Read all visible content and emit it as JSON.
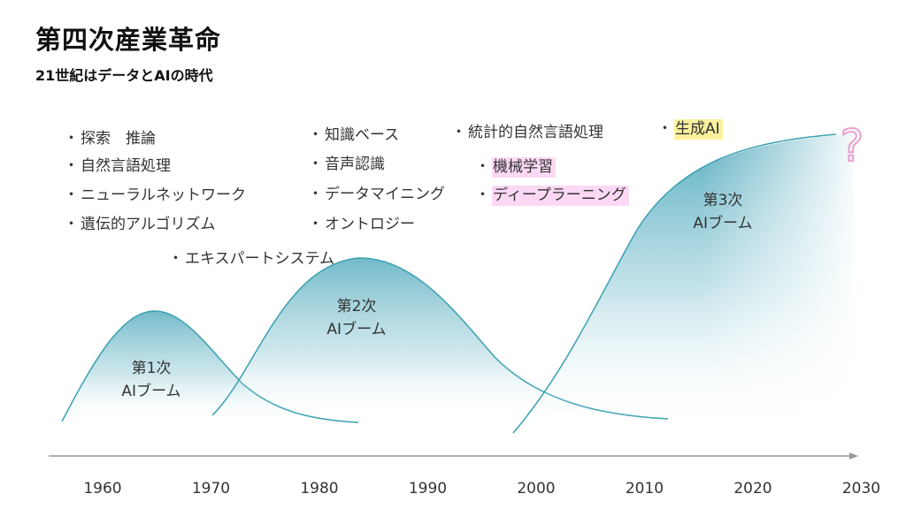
{
  "title": "第四次産業革命",
  "subtitle": "21世紀はデータとAIの時代",
  "booms": [
    {
      "line1": "第1次",
      "line2": "AIブーム"
    },
    {
      "line1": "第2次",
      "line2": "AIブーム"
    },
    {
      "line1": "第3次",
      "line2": "AIブーム"
    }
  ],
  "future_mark": "?",
  "timeline": {
    "years": [
      "1960",
      "1970",
      "1980",
      "1990",
      "2000",
      "2010",
      "2020",
      "2030"
    ]
  },
  "technologies": {
    "boom1": [
      "探索　推論",
      "自然言語処理",
      "ニューラルネットワーク",
      "遺伝的アルゴリズム"
    ],
    "boom2_expert": "エキスパートシステム",
    "boom2": [
      "知識ベース",
      "音声認識",
      "データマイニング",
      "オントロジー"
    ],
    "boom3_statistical": "統計的自然言語処理",
    "boom3": [
      "機械学習",
      "ディープラーニング"
    ],
    "generative": "生成AI"
  },
  "bullet": "・",
  "colors": {
    "curve": "#3aa0b0",
    "fill_base": "#5aaec0",
    "highlight_yellow": "#fbf19c",
    "highlight_pink": "#fbd8f4",
    "question": "#e8a8cf"
  }
}
